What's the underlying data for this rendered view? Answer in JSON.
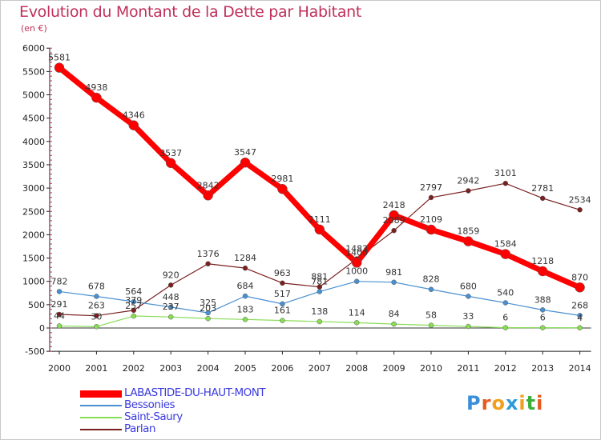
{
  "title": "Evolution du Montant de la Dette par Habitant",
  "subtitle": "(en €)",
  "logo": {
    "text": "Proxiti",
    "letter_colors": [
      "#3a8fd8",
      "#e65a1e",
      "#f0a01e",
      "#2a9ad8",
      "#f0a01e",
      "#3ab03a",
      "#e65a1e"
    ]
  },
  "chart_data": {
    "type": "line",
    "x": [
      "2000",
      "2001",
      "2002",
      "2003",
      "2004",
      "2005",
      "2006",
      "2007",
      "2008",
      "2009",
      "2010",
      "2011",
      "2012",
      "2013",
      "2014"
    ],
    "ylim": [
      -500,
      6000
    ],
    "yticks": [
      "-500",
      "0",
      "500",
      "1000",
      "1500",
      "2000",
      "2500",
      "3000",
      "3500",
      "4000",
      "4500",
      "5000",
      "5500",
      "6000"
    ],
    "grid": false,
    "legend_position": "bottom-left",
    "series": [
      {
        "name": "LABASTIDE-DU-HAUT-MONT",
        "color": "#ff0000",
        "values": [
          5581,
          4938,
          4346,
          3537,
          2842,
          3547,
          2981,
          2111,
          1400,
          2418,
          2109,
          1859,
          1584,
          1218,
          870
        ]
      },
      {
        "name": "Bessonies",
        "color": "#4a90d0",
        "values": [
          782,
          678,
          564,
          448,
          325,
          684,
          517,
          781,
          1000,
          981,
          828,
          680,
          540,
          388,
          268
        ]
      },
      {
        "name": "Saint-Saury",
        "color": "#88dd55",
        "values": [
          44,
          30,
          257,
          237,
          203,
          183,
          161,
          138,
          114,
          84,
          58,
          33,
          6,
          6,
          4
        ]
      },
      {
        "name": "Parlan",
        "color": "#7a2020",
        "values": [
          291,
          263,
          379,
          920,
          1376,
          1284,
          963,
          881,
          1483,
          2089,
          2797,
          2942,
          3101,
          2781,
          2534
        ]
      }
    ]
  }
}
